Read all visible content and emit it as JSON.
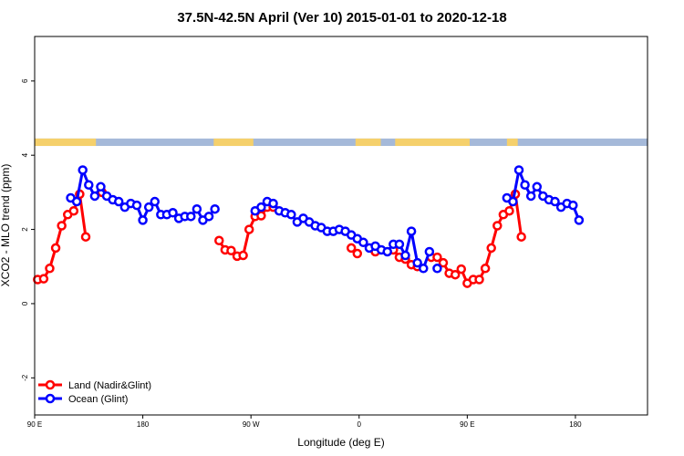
{
  "chart_data": {
    "type": "line",
    "title": "37.5N-42.5N April (Ver 10)   2015-01-01 to 2020-12-18",
    "xlabel": "Longitude (deg E)",
    "ylabel": "XCO2 - MLO trend (ppm)",
    "xlim": [
      90,
      600
    ],
    "ylim": [
      -3,
      7.2
    ],
    "x_ticks": [
      {
        "value": 90,
        "label": "90 E"
      },
      {
        "value": 180,
        "label": "180"
      },
      {
        "value": 270,
        "label": "90 W"
      },
      {
        "value": 360,
        "label": "0"
      },
      {
        "value": 450,
        "label": "90 E"
      },
      {
        "value": 540,
        "label": "180"
      }
    ],
    "y_ticks": [
      {
        "value": -2,
        "label": "-2"
      },
      {
        "value": 0,
        "label": "0"
      },
      {
        "value": 2,
        "label": "2"
      },
      {
        "value": 4,
        "label": "4"
      },
      {
        "value": 6,
        "label": "6"
      }
    ],
    "grid": false,
    "legend": {
      "position": "bottom-left"
    },
    "land_ocean_strip": {
      "y_range": [
        4.25,
        4.45
      ],
      "land_color": "#F5D06C",
      "ocean_color": "#A5B9D9",
      "land_ranges": [
        [
          90,
          141
        ],
        [
          239,
          272
        ],
        [
          357,
          378
        ],
        [
          390,
          452
        ],
        [
          483,
          492
        ]
      ]
    },
    "series": [
      {
        "name": "Land (Nadir&Glint)",
        "color": "#FF0000",
        "segments": [
          [
            [
              92.5,
              0.65
            ],
            [
              97.5,
              0.67
            ],
            [
              102.5,
              0.95
            ],
            [
              107.5,
              1.5
            ],
            [
              112.5,
              2.1
            ],
            [
              117.5,
              2.4
            ],
            [
              122.5,
              2.5
            ],
            [
              127.5,
              2.95
            ],
            [
              132.5,
              1.8
            ]
          ],
          [
            [
              146,
              3.0
            ]
          ],
          [
            [
              243.5,
              1.7
            ],
            [
              248.5,
              1.45
            ],
            [
              253.5,
              1.43
            ],
            [
              258.5,
              1.28
            ],
            [
              263.5,
              1.3
            ],
            [
              268.5,
              2.0
            ],
            [
              273.5,
              2.35
            ],
            [
              278.5,
              2.37
            ],
            [
              283.5,
              2.6
            ],
            [
              288.5,
              2.6
            ]
          ],
          [
            [
              353.5,
              1.5
            ],
            [
              358.5,
              1.35
            ]
          ],
          [
            [
              373.5,
              1.4
            ],
            [
              388.5,
              1.45
            ],
            [
              393.5,
              1.25
            ],
            [
              398.5,
              1.2
            ],
            [
              403.5,
              1.05
            ],
            [
              408.5,
              1.0
            ]
          ],
          [
            [
              420,
              1.25
            ],
            [
              425,
              1.25
            ],
            [
              430,
              1.1
            ],
            [
              435,
              0.82
            ],
            [
              440,
              0.78
            ],
            [
              445,
              0.93
            ],
            [
              450,
              0.55
            ],
            [
              455,
              0.65
            ],
            [
              460,
              0.65
            ],
            [
              465,
              0.95
            ],
            [
              470,
              1.5
            ],
            [
              475,
              2.1
            ],
            [
              480,
              2.4
            ],
            [
              485,
              2.5
            ],
            [
              490,
              2.95
            ],
            [
              495,
              1.8
            ]
          ]
        ]
      },
      {
        "name": "Ocean (Glint)",
        "color": "#0000FF",
        "segments": [
          [
            [
              120,
              2.85
            ],
            [
              125,
              2.75
            ],
            [
              130,
              3.6
            ],
            [
              135,
              3.2
            ],
            [
              140,
              2.9
            ],
            [
              145,
              3.15
            ],
            [
              150,
              2.9
            ],
            [
              155,
              2.8
            ],
            [
              160,
              2.75
            ],
            [
              165,
              2.6
            ],
            [
              170,
              2.7
            ],
            [
              175,
              2.65
            ],
            [
              180,
              2.25
            ],
            [
              185,
              2.6
            ],
            [
              190,
              2.75
            ],
            [
              195,
              2.4
            ],
            [
              200,
              2.4
            ],
            [
              205,
              2.45
            ],
            [
              210,
              2.3
            ],
            [
              215,
              2.35
            ],
            [
              220,
              2.35
            ],
            [
              225,
              2.55
            ],
            [
              230,
              2.25
            ],
            [
              235,
              2.35
            ],
            [
              240,
              2.55
            ]
          ],
          [
            [
              273.5,
              2.5
            ],
            [
              278.5,
              2.6
            ],
            [
              283.5,
              2.75
            ],
            [
              288.5,
              2.7
            ],
            [
              293.5,
              2.5
            ],
            [
              298.5,
              2.45
            ],
            [
              303.5,
              2.4
            ],
            [
              308.5,
              2.2
            ],
            [
              313.5,
              2.3
            ],
            [
              318.5,
              2.2
            ],
            [
              323.5,
              2.1
            ],
            [
              328.5,
              2.05
            ],
            [
              333.5,
              1.95
            ],
            [
              338.5,
              1.95
            ],
            [
              343.5,
              2.0
            ],
            [
              348.5,
              1.95
            ],
            [
              353.5,
              1.85
            ],
            [
              358.5,
              1.75
            ],
            [
              363.5,
              1.65
            ],
            [
              368.5,
              1.5
            ],
            [
              373.5,
              1.55
            ],
            [
              378.5,
              1.45
            ],
            [
              383.5,
              1.4
            ],
            [
              388.5,
              1.6
            ],
            [
              393.5,
              1.6
            ],
            [
              398.5,
              1.3
            ],
            [
              403.5,
              1.95
            ],
            [
              408.5,
              1.1
            ],
            [
              413.5,
              0.95
            ],
            [
              418.5,
              1.4
            ]
          ],
          [
            [
              425,
              0.95
            ]
          ],
          [
            [
              483,
              2.85
            ],
            [
              488,
              2.75
            ],
            [
              493,
              3.6
            ],
            [
              498,
              3.2
            ],
            [
              503,
              2.9
            ],
            [
              508,
              3.15
            ],
            [
              513,
              2.9
            ],
            [
              518,
              2.8
            ],
            [
              523,
              2.75
            ],
            [
              528,
              2.6
            ],
            [
              533,
              2.7
            ],
            [
              538,
              2.65
            ],
            [
              543,
              2.25
            ]
          ]
        ]
      }
    ]
  }
}
